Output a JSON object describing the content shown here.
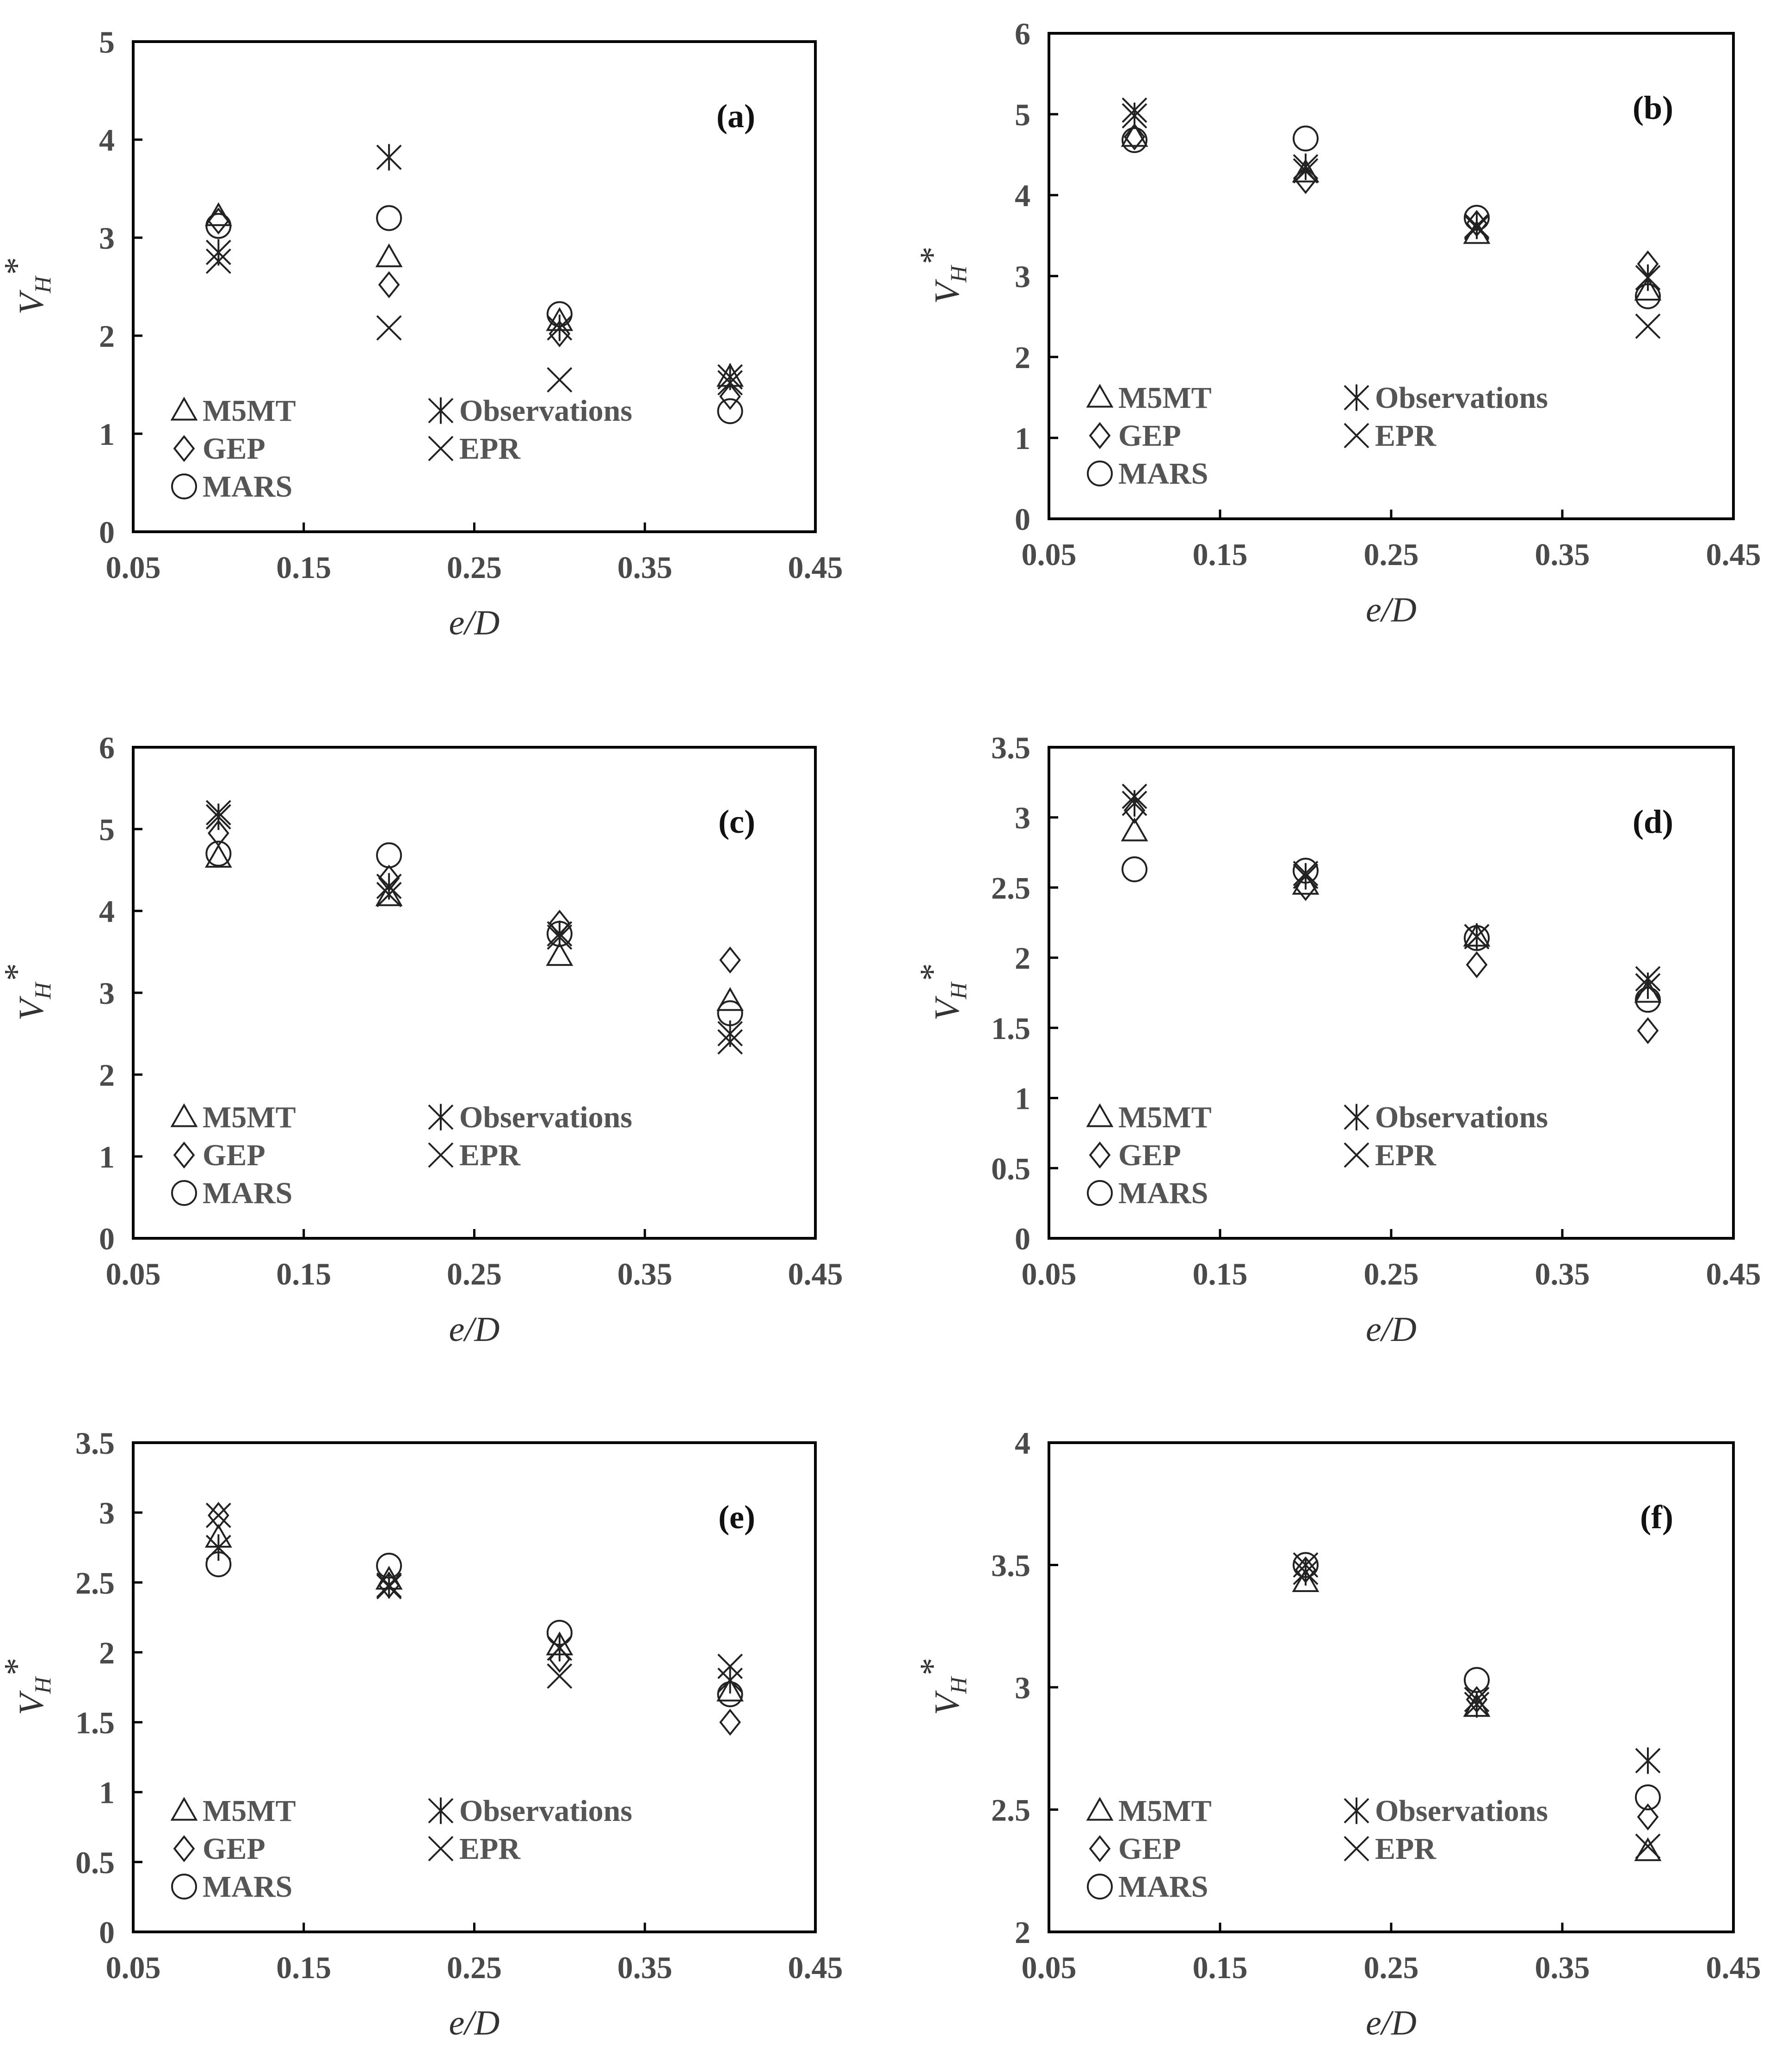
{
  "chart_data": [
    {
      "type": "scatter",
      "panel_label": "(a)",
      "xlabel": "e/D",
      "ylabel": "V_H*",
      "xlim": [
        0.05,
        0.45
      ],
      "ylim": [
        0,
        5
      ],
      "xticks": [
        "0.05",
        "0.15",
        "0.25",
        "0.35",
        "0.45"
      ],
      "yticks": [
        "0",
        "1",
        "2",
        "3",
        "4",
        "5"
      ],
      "series": [
        {
          "name": "M5MT",
          "marker": "triangle",
          "x": [
            0.1,
            0.2,
            0.3,
            0.4
          ],
          "y": [
            3.22,
            2.8,
            2.15,
            1.58
          ]
        },
        {
          "name": "GEP",
          "marker": "diamond",
          "x": [
            0.1,
            0.2,
            0.3,
            0.4
          ],
          "y": [
            3.17,
            2.52,
            2.02,
            1.38
          ]
        },
        {
          "name": "MARS",
          "marker": "circle",
          "x": [
            0.1,
            0.2,
            0.3,
            0.4
          ],
          "y": [
            3.12,
            3.2,
            2.22,
            1.23
          ]
        },
        {
          "name": "Observations",
          "marker": "asterisk",
          "x": [
            0.1,
            0.2,
            0.3,
            0.4
          ],
          "y": [
            2.85,
            3.82,
            2.08,
            1.58
          ]
        },
        {
          "name": "EPR",
          "marker": "x",
          "x": [
            0.1,
            0.2,
            0.3,
            0.4
          ],
          "y": [
            2.76,
            2.08,
            1.55,
            1.52
          ]
        }
      ]
    },
    {
      "type": "scatter",
      "panel_label": "(b)",
      "xlabel": "e/D",
      "ylabel": "V_H*",
      "xlim": [
        0.05,
        0.45
      ],
      "ylim": [
        0,
        6
      ],
      "xticks": [
        "0.05",
        "0.15",
        "0.25",
        "0.35",
        "0.45"
      ],
      "yticks": [
        "0",
        "1",
        "2",
        "3",
        "4",
        "5",
        "6"
      ],
      "series": [
        {
          "name": "M5MT",
          "marker": "triangle",
          "x": [
            0.1,
            0.2,
            0.3,
            0.4
          ],
          "y": [
            4.72,
            4.28,
            3.52,
            2.82
          ]
        },
        {
          "name": "GEP",
          "marker": "diamond",
          "x": [
            0.1,
            0.2,
            0.3,
            0.4
          ],
          "y": [
            4.72,
            4.18,
            3.65,
            3.15
          ]
        },
        {
          "name": "MARS",
          "marker": "circle",
          "x": [
            0.1,
            0.2,
            0.3,
            0.4
          ],
          "y": [
            4.68,
            4.7,
            3.72,
            2.75
          ]
        },
        {
          "name": "Observations",
          "marker": "asterisk",
          "x": [
            0.1,
            0.2,
            0.3,
            0.4
          ],
          "y": [
            4.98,
            4.35,
            3.62,
            2.98
          ]
        },
        {
          "name": "EPR",
          "marker": "x",
          "x": [
            0.1,
            0.2,
            0.3,
            0.4
          ],
          "y": [
            5.05,
            4.3,
            3.6,
            2.38
          ]
        }
      ]
    },
    {
      "type": "scatter",
      "panel_label": "(c)",
      "xlabel": "e/D",
      "ylabel": "V_H*",
      "xlim": [
        0.05,
        0.45
      ],
      "ylim": [
        0,
        6
      ],
      "xticks": [
        "0.05",
        "0.15",
        "0.25",
        "0.35",
        "0.45"
      ],
      "yticks": [
        "0",
        "1",
        "2",
        "3",
        "4",
        "5",
        "6"
      ],
      "series": [
        {
          "name": "M5MT",
          "marker": "triangle",
          "x": [
            0.1,
            0.2,
            0.3,
            0.4
          ],
          "y": [
            4.65,
            4.18,
            3.45,
            2.9
          ]
        },
        {
          "name": "GEP",
          "marker": "diamond",
          "x": [
            0.1,
            0.2,
            0.3,
            0.4
          ],
          "y": [
            4.95,
            4.4,
            3.85,
            3.4
          ]
        },
        {
          "name": "MARS",
          "marker": "circle",
          "x": [
            0.1,
            0.2,
            0.3,
            0.4
          ],
          "y": [
            4.7,
            4.68,
            3.72,
            2.75
          ]
        },
        {
          "name": "Observations",
          "marker": "asterisk",
          "x": [
            0.1,
            0.2,
            0.3,
            0.4
          ],
          "y": [
            5.15,
            4.3,
            3.72,
            2.5
          ]
        },
        {
          "name": "EPR",
          "marker": "x",
          "x": [
            0.1,
            0.2,
            0.3,
            0.4
          ],
          "y": [
            5.2,
            4.2,
            3.68,
            2.4
          ]
        }
      ]
    },
    {
      "type": "scatter",
      "panel_label": "(d)",
      "xlabel": "e/D",
      "ylabel": "V_H*",
      "xlim": [
        0.05,
        0.45
      ],
      "ylim": [
        0,
        3.5
      ],
      "xticks": [
        "0.05",
        "0.15",
        "0.25",
        "0.35",
        "0.45"
      ],
      "yticks": [
        "0",
        "0.5",
        "1",
        "1.5",
        "2",
        "2.5",
        "3",
        "3.5"
      ],
      "series": [
        {
          "name": "M5MT",
          "marker": "triangle",
          "x": [
            0.1,
            0.2,
            0.3,
            0.4
          ],
          "y": [
            2.9,
            2.52,
            2.15,
            1.75
          ]
        },
        {
          "name": "GEP",
          "marker": "diamond",
          "x": [
            0.1,
            0.2,
            0.3,
            0.4
          ],
          "y": [
            3.05,
            2.5,
            1.95,
            1.48
          ]
        },
        {
          "name": "MARS",
          "marker": "circle",
          "x": [
            0.1,
            0.2,
            0.3,
            0.4
          ],
          "y": [
            2.63,
            2.62,
            2.14,
            1.7
          ]
        },
        {
          "name": "Observations",
          "marker": "asterisk",
          "x": [
            0.1,
            0.2,
            0.3,
            0.4
          ],
          "y": [
            3.1,
            2.58,
            2.15,
            1.8
          ]
        },
        {
          "name": "EPR",
          "marker": "x",
          "x": [
            0.1,
            0.2,
            0.3,
            0.4
          ],
          "y": [
            3.15,
            2.6,
            2.15,
            1.85
          ]
        }
      ]
    },
    {
      "type": "scatter",
      "panel_label": "(e)",
      "xlabel": "e/D",
      "ylabel": "V_H*",
      "xlim": [
        0.05,
        0.45
      ],
      "ylim": [
        0,
        3.5
      ],
      "xticks": [
        "0.05",
        "0.15",
        "0.25",
        "0.35",
        "0.45"
      ],
      "yticks": [
        "0",
        "0.5",
        "1",
        "1.5",
        "2",
        "2.5",
        "3",
        "3.5"
      ],
      "series": [
        {
          "name": "M5MT",
          "marker": "triangle",
          "x": [
            0.1,
            0.2,
            0.3,
            0.4
          ],
          "y": [
            2.82,
            2.52,
            2.05,
            1.72
          ]
        },
        {
          "name": "GEP",
          "marker": "diamond",
          "x": [
            0.1,
            0.2,
            0.3,
            0.4
          ],
          "y": [
            2.98,
            2.48,
            1.95,
            1.5
          ]
        },
        {
          "name": "MARS",
          "marker": "circle",
          "x": [
            0.1,
            0.2,
            0.3,
            0.4
          ],
          "y": [
            2.63,
            2.62,
            2.14,
            1.7
          ]
        },
        {
          "name": "Observations",
          "marker": "asterisk",
          "x": [
            0.1,
            0.2,
            0.3,
            0.4
          ],
          "y": [
            2.75,
            2.48,
            2.03,
            1.8
          ]
        },
        {
          "name": "EPR",
          "marker": "x",
          "x": [
            0.1,
            0.2,
            0.3,
            0.4
          ],
          "y": [
            2.98,
            2.47,
            1.83,
            1.9
          ]
        }
      ]
    },
    {
      "type": "scatter",
      "panel_label": "(f)",
      "xlabel": "e/D",
      "ylabel": "V_H*",
      "xlim": [
        0.05,
        0.45
      ],
      "ylim": [
        2,
        4
      ],
      "xticks": [
        "0.05",
        "0.15",
        "0.25",
        "0.35",
        "0.45"
      ],
      "yticks": [
        "2",
        "2.5",
        "3",
        "3.5",
        "4"
      ],
      "series": [
        {
          "name": "M5MT",
          "marker": "triangle",
          "x": [
            0.2,
            0.3,
            0.4
          ],
          "y": [
            3.43,
            2.92,
            2.33
          ]
        },
        {
          "name": "GEP",
          "marker": "diamond",
          "x": [
            0.2,
            0.3,
            0.4
          ],
          "y": [
            3.48,
            2.95,
            2.47
          ]
        },
        {
          "name": "MARS",
          "marker": "circle",
          "x": [
            0.2,
            0.3,
            0.4
          ],
          "y": [
            3.5,
            3.03,
            2.55
          ]
        },
        {
          "name": "Observations",
          "marker": "asterisk",
          "x": [
            0.2,
            0.3,
            0.4
          ],
          "y": [
            3.47,
            2.93,
            2.7
          ]
        },
        {
          "name": "EPR",
          "marker": "x",
          "x": [
            0.2,
            0.3,
            0.4
          ],
          "y": [
            3.5,
            2.95,
            2.35
          ]
        }
      ]
    }
  ],
  "legend": {
    "left_column": [
      "M5MT",
      "GEP",
      "MARS"
    ],
    "right_column": [
      "Observations",
      "EPR"
    ],
    "placement": "bottom-left"
  },
  "axis_text": {
    "xlabel_main": "e/D",
    "ylabel_main": "V",
    "ylabel_sub": "H",
    "ylabel_sup": "*"
  }
}
